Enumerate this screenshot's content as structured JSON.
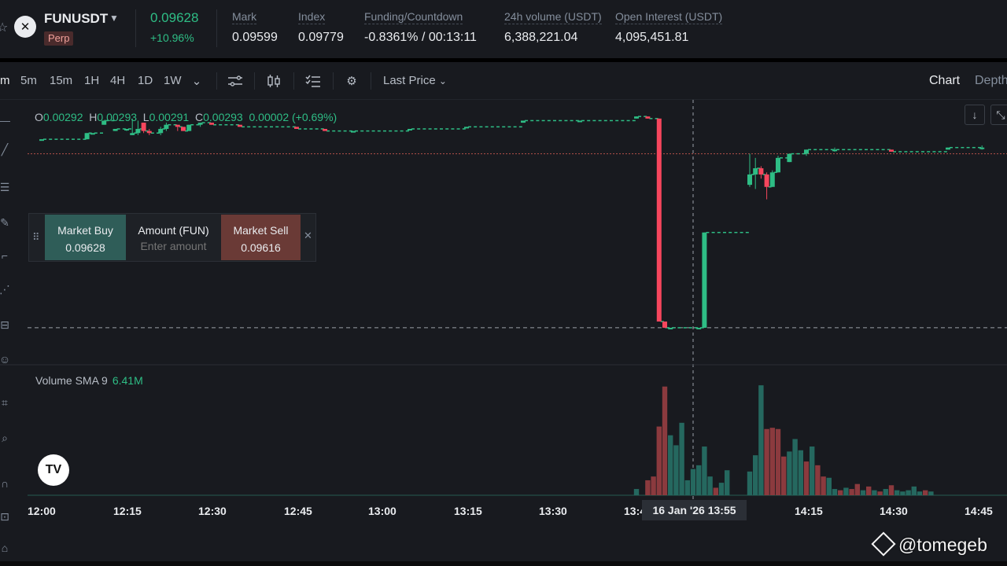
{
  "header": {
    "symbol": "FUNUSDT",
    "contract_type": "Perp",
    "last_price": "0.09628",
    "change_pct": "+10.96%",
    "stats": [
      {
        "label": "Mark",
        "value": "0.09599"
      },
      {
        "label": "Index",
        "value": "0.09779"
      },
      {
        "label": "Funding/Countdown",
        "value": "-0.8361% / 00:13:11"
      },
      {
        "label": "24h volume (USDT)",
        "value": "6,388,221.04"
      },
      {
        "label": "Open Interest (USDT)",
        "value": "4,095,451.81"
      }
    ]
  },
  "toolbar": {
    "active_interval": "m",
    "intervals": [
      "5m",
      "15m",
      "1H",
      "4H",
      "1D",
      "1W"
    ],
    "price_source": "Last Price",
    "views": [
      "Chart",
      "Depth"
    ]
  },
  "ohlc_legend": {
    "o_key": "O",
    "o": "0.00292",
    "h_key": "H",
    "h": "0.00293",
    "l_key": "L",
    "l": "0.00291",
    "c_key": "C",
    "c": "0.00293",
    "change": "0.00002 (+0.69%)"
  },
  "quick_trade": {
    "buy_label": "Market Buy",
    "buy_price": "0.09628",
    "amount_label": "Amount (FUN)",
    "amount_placeholder": "Enter amount",
    "sell_label": "Market Sell",
    "sell_price": "0.09616"
  },
  "volume_legend": {
    "label": "Volume SMA 9",
    "value": "6.41M"
  },
  "x_axis": {
    "ticks": [
      "12:00",
      "12:15",
      "12:30",
      "12:45",
      "13:00",
      "13:15",
      "13:30",
      "13:4",
      "14:15",
      "14:30",
      "14:45"
    ],
    "crosshair_label": "16 Jan '26   13:55"
  },
  "watermark": "@tomegeb",
  "colors": {
    "up": "#2ebd85",
    "down": "#f6465d",
    "vol_up": "#25685f",
    "vol_down": "#8b3a3e"
  },
  "chart_data": {
    "type": "candlestick",
    "interval_minutes": 1,
    "candles": [
      {
        "t": "12:00",
        "o": 0.0969,
        "h": 0.0969,
        "l": 0.0969,
        "c": 0.0969
      },
      {
        "t": "12:08",
        "o": 0.0969,
        "h": 0.0972,
        "l": 0.0969,
        "c": 0.0972
      },
      {
        "t": "12:09",
        "o": 0.0972,
        "h": 0.0972,
        "l": 0.0972,
        "c": 0.0972
      },
      {
        "t": "12:11",
        "o": 0.0976,
        "h": 0.0978,
        "l": 0.0976,
        "c": 0.0978
      },
      {
        "t": "12:13",
        "o": 0.0973,
        "h": 0.0974,
        "l": 0.0973,
        "c": 0.0974
      },
      {
        "t": "12:15",
        "o": 0.0974,
        "h": 0.0974,
        "l": 0.0973,
        "c": 0.0974
      },
      {
        "t": "12:16",
        "o": 0.0971,
        "h": 0.0979,
        "l": 0.0971,
        "c": 0.0972
      },
      {
        "t": "12:17",
        "o": 0.0972,
        "h": 0.0978,
        "l": 0.0971,
        "c": 0.0974
      },
      {
        "t": "12:18",
        "o": 0.0977,
        "h": 0.0977,
        "l": 0.0972,
        "c": 0.0973
      },
      {
        "t": "12:19",
        "o": 0.0973,
        "h": 0.0974,
        "l": 0.0971,
        "c": 0.0972
      },
      {
        "t": "12:21",
        "o": 0.0972,
        "h": 0.0975,
        "l": 0.0971,
        "c": 0.0974
      },
      {
        "t": "12:22",
        "o": 0.0974,
        "h": 0.0977,
        "l": 0.0973,
        "c": 0.0976
      },
      {
        "t": "12:24",
        "o": 0.0976,
        "h": 0.0976,
        "l": 0.0973,
        "c": 0.0975
      },
      {
        "t": "12:25",
        "o": 0.0975,
        "h": 0.0975,
        "l": 0.0973,
        "c": 0.0973
      },
      {
        "t": "12:26",
        "o": 0.0973,
        "h": 0.0976,
        "l": 0.0973,
        "c": 0.0976
      },
      {
        "t": "12:28",
        "o": 0.0976,
        "h": 0.0977,
        "l": 0.0975,
        "c": 0.0977
      },
      {
        "t": "12:30",
        "o": 0.0977,
        "h": 0.0977,
        "l": 0.0976,
        "c": 0.0976
      },
      {
        "t": "12:35",
        "o": 0.0976,
        "h": 0.0976,
        "l": 0.0975,
        "c": 0.0975
      },
      {
        "t": "12:45",
        "o": 0.0975,
        "h": 0.0975,
        "l": 0.0974,
        "c": 0.0974
      },
      {
        "t": "12:50",
        "o": 0.0974,
        "h": 0.0974,
        "l": 0.0973,
        "c": 0.0973
      },
      {
        "t": "12:55",
        "o": 0.0973,
        "h": 0.0973,
        "l": 0.0973,
        "c": 0.0973
      },
      {
        "t": "13:05",
        "o": 0.0974,
        "h": 0.0974,
        "l": 0.0974,
        "c": 0.0974
      },
      {
        "t": "13:15",
        "o": 0.0975,
        "h": 0.0975,
        "l": 0.0975,
        "c": 0.0975
      },
      {
        "t": "13:25",
        "o": 0.0977,
        "h": 0.0978,
        "l": 0.0977,
        "c": 0.0978
      },
      {
        "t": "13:35",
        "o": 0.0978,
        "h": 0.0978,
        "l": 0.0978,
        "c": 0.0978
      },
      {
        "t": "13:45",
        "o": 0.0979,
        "h": 0.098,
        "l": 0.0979,
        "c": 0.098
      },
      {
        "t": "13:47",
        "o": 0.098,
        "h": 0.098,
        "l": 0.0979,
        "c": 0.0979
      },
      {
        "t": "13:49",
        "o": 0.0979,
        "h": 0.0979,
        "l": 0.0881,
        "c": 0.0881
      },
      {
        "t": "13:50",
        "o": 0.0881,
        "h": 0.0881,
        "l": 0.0878,
        "c": 0.0878
      },
      {
        "t": "13:51",
        "o": 0.0878,
        "h": 0.0878,
        "l": 0.0878,
        "c": 0.0878
      },
      {
        "t": "13:56",
        "o": 0.0878,
        "h": 0.0878,
        "l": 0.0878,
        "c": 0.0878
      },
      {
        "t": "13:57",
        "o": 0.0878,
        "h": 0.0924,
        "l": 0.0878,
        "c": 0.0924
      },
      {
        "t": "14:05",
        "o": 0.0947,
        "h": 0.0962,
        "l": 0.0946,
        "c": 0.0952
      },
      {
        "t": "14:06",
        "o": 0.0952,
        "h": 0.096,
        "l": 0.0945,
        "c": 0.0955
      },
      {
        "t": "14:07",
        "o": 0.0955,
        "h": 0.0956,
        "l": 0.095,
        "c": 0.0952
      },
      {
        "t": "14:08",
        "o": 0.0952,
        "h": 0.0953,
        "l": 0.094,
        "c": 0.0946
      },
      {
        "t": "14:09",
        "o": 0.0946,
        "h": 0.0954,
        "l": 0.0946,
        "c": 0.0953
      },
      {
        "t": "14:10",
        "o": 0.0953,
        "h": 0.0961,
        "l": 0.0953,
        "c": 0.096
      },
      {
        "t": "14:12",
        "o": 0.0958,
        "h": 0.0962,
        "l": 0.0958,
        "c": 0.0962
      },
      {
        "t": "14:15",
        "o": 0.0962,
        "h": 0.0964,
        "l": 0.0961,
        "c": 0.0964
      },
      {
        "t": "14:20",
        "o": 0.0964,
        "h": 0.0965,
        "l": 0.0963,
        "c": 0.0964
      },
      {
        "t": "14:30",
        "o": 0.0964,
        "h": 0.0964,
        "l": 0.0963,
        "c": 0.0963
      },
      {
        "t": "14:40",
        "o": 0.0964,
        "h": 0.0965,
        "l": 0.0964,
        "c": 0.0965
      },
      {
        "t": "14:46",
        "o": 0.0965,
        "h": 0.0966,
        "l": 0.0964,
        "c": 0.0965
      }
    ],
    "price_range": [
      0.087,
      0.0985
    ],
    "reference_lines": {
      "last_price": 0.0962,
      "crosshair_price": 0.0878
    },
    "crosshair_time": "13:55",
    "volume_bars_m": [
      {
        "t": "13:45",
        "v": 0.5,
        "up": true
      },
      {
        "t": "13:47",
        "v": 1.2,
        "up": false
      },
      {
        "t": "13:48",
        "v": 1.5,
        "up": false
      },
      {
        "t": "13:49",
        "v": 5.5,
        "up": false
      },
      {
        "t": "13:50",
        "v": 8.7,
        "up": false
      },
      {
        "t": "13:51",
        "v": 4.8,
        "up": true
      },
      {
        "t": "13:52",
        "v": 4.0,
        "up": true
      },
      {
        "t": "13:53",
        "v": 5.8,
        "up": true
      },
      {
        "t": "13:54",
        "v": 1.2,
        "up": true
      },
      {
        "t": "13:55",
        "v": 2.1,
        "up": true
      },
      {
        "t": "13:56",
        "v": 2.4,
        "up": true
      },
      {
        "t": "13:57",
        "v": 3.9,
        "up": true
      },
      {
        "t": "13:58",
        "v": 1.5,
        "up": true
      },
      {
        "t": "13:59",
        "v": 0.6,
        "up": false
      },
      {
        "t": "14:00",
        "v": 1.0,
        "up": true
      },
      {
        "t": "14:01",
        "v": 2.0,
        "up": true
      },
      {
        "t": "14:05",
        "v": 1.9,
        "up": true
      },
      {
        "t": "14:06",
        "v": 3.2,
        "up": true
      },
      {
        "t": "14:07",
        "v": 8.8,
        "up": true
      },
      {
        "t": "14:08",
        "v": 5.3,
        "up": false
      },
      {
        "t": "14:09",
        "v": 5.4,
        "up": false
      },
      {
        "t": "14:10",
        "v": 5.3,
        "up": false
      },
      {
        "t": "14:11",
        "v": 3.1,
        "up": false
      },
      {
        "t": "14:12",
        "v": 3.5,
        "up": true
      },
      {
        "t": "14:13",
        "v": 4.5,
        "up": true
      },
      {
        "t": "14:14",
        "v": 3.6,
        "up": true
      },
      {
        "t": "14:15",
        "v": 2.7,
        "up": false
      },
      {
        "t": "14:16",
        "v": 3.9,
        "up": true
      },
      {
        "t": "14:17",
        "v": 2.4,
        "up": false
      },
      {
        "t": "14:18",
        "v": 1.5,
        "up": false
      },
      {
        "t": "14:19",
        "v": 1.4,
        "up": true
      },
      {
        "t": "14:20",
        "v": 0.5,
        "up": true
      },
      {
        "t": "14:21",
        "v": 0.4,
        "up": false
      },
      {
        "t": "14:22",
        "v": 0.6,
        "up": true
      },
      {
        "t": "14:23",
        "v": 0.5,
        "up": false
      },
      {
        "t": "14:24",
        "v": 0.9,
        "up": false
      },
      {
        "t": "14:25",
        "v": 0.4,
        "up": true
      },
      {
        "t": "14:26",
        "v": 0.7,
        "up": false
      },
      {
        "t": "14:27",
        "v": 0.4,
        "up": true
      },
      {
        "t": "14:28",
        "v": 0.3,
        "up": false
      },
      {
        "t": "14:29",
        "v": 0.5,
        "up": true
      },
      {
        "t": "14:30",
        "v": 0.8,
        "up": false
      },
      {
        "t": "14:31",
        "v": 0.4,
        "up": true
      },
      {
        "t": "14:32",
        "v": 0.3,
        "up": true
      },
      {
        "t": "14:33",
        "v": 0.4,
        "up": true
      },
      {
        "t": "14:34",
        "v": 0.7,
        "up": true
      },
      {
        "t": "14:35",
        "v": 0.3,
        "up": true
      },
      {
        "t": "14:36",
        "v": 0.4,
        "up": false
      },
      {
        "t": "14:37",
        "v": 0.3,
        "up": true
      }
    ],
    "volume_range_m": [
      0,
      9.5
    ]
  }
}
